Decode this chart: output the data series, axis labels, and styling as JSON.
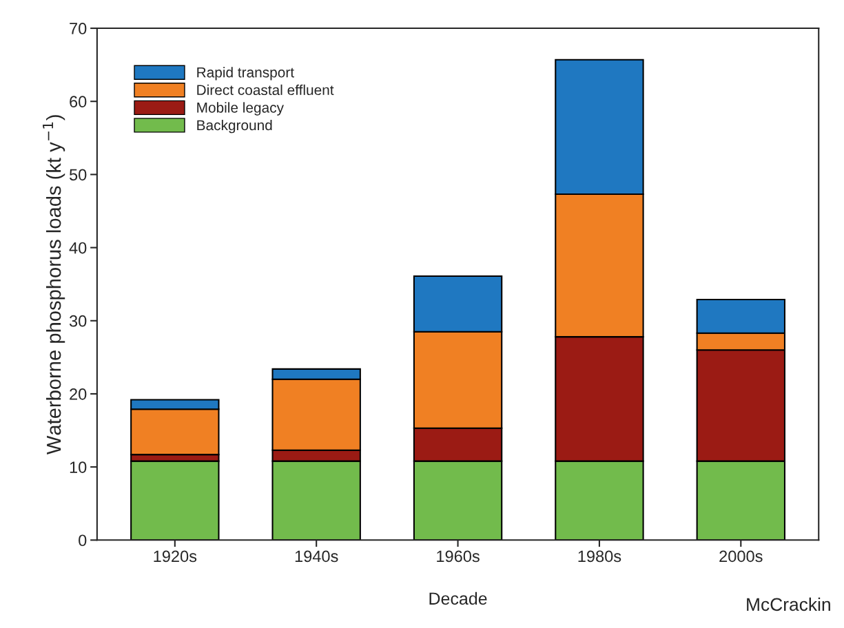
{
  "chart_data": {
    "type": "bar",
    "stacked": true,
    "xlabel": "Decade",
    "ylabel": "Waterborne phosphorus loads (kt y$^{−1}$)",
    "categories": [
      "1920s",
      "1940s",
      "1960s",
      "1980s",
      "2000s"
    ],
    "series": [
      {
        "name": "Background",
        "color": "#72bb4c",
        "values": [
          10.8,
          10.8,
          10.8,
          10.8,
          10.8
        ]
      },
      {
        "name": "Mobile legacy",
        "color": "#9b1b14",
        "values": [
          0.9,
          1.5,
          4.5,
          17.0,
          15.2
        ]
      },
      {
        "name": "Direct coastal effluent",
        "color": "#f08023",
        "values": [
          6.2,
          9.7,
          13.2,
          19.5,
          2.3
        ]
      },
      {
        "name": "Rapid transport",
        "color": "#1f78c1",
        "values": [
          1.3,
          1.4,
          7.6,
          18.4,
          4.6
        ]
      }
    ],
    "ylim": [
      0,
      70
    ],
    "yticks": [
      0,
      10,
      20,
      30,
      40,
      50,
      60,
      70
    ],
    "grid": false,
    "legend": "top left",
    "annotations": [
      "McCrackin"
    ]
  }
}
